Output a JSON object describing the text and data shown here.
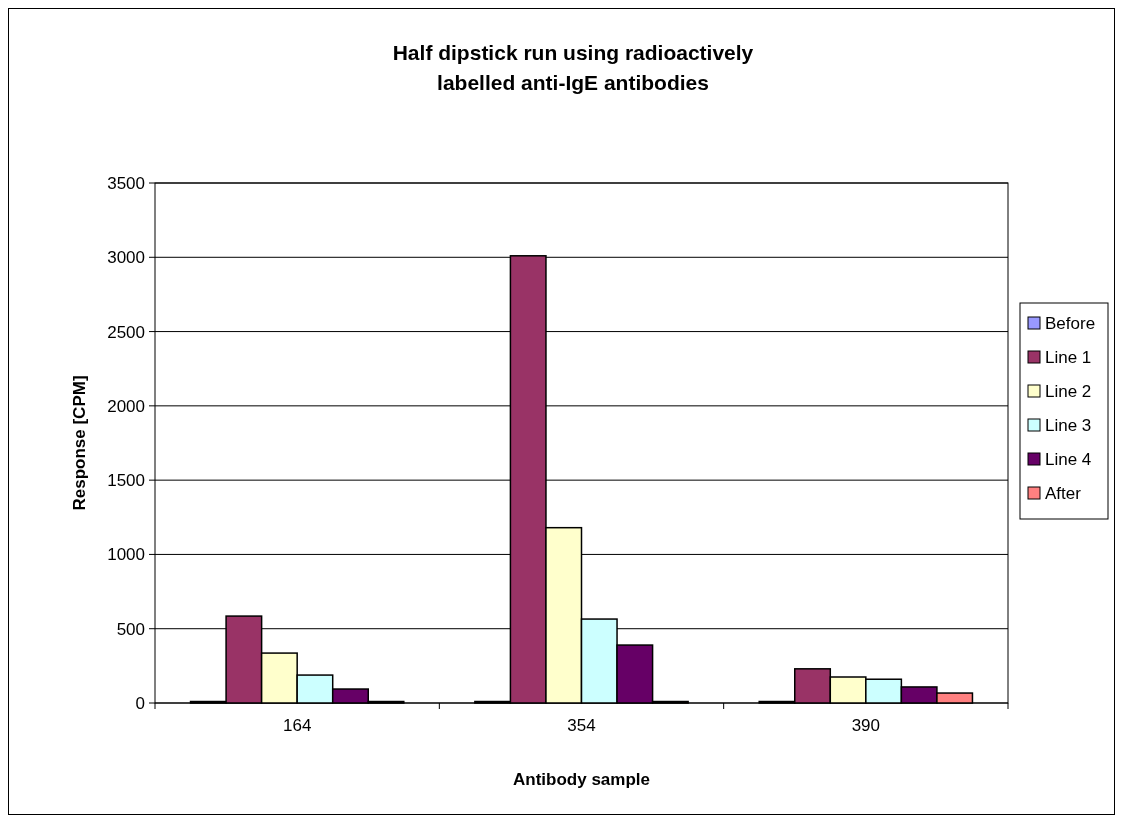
{
  "chart_data": {
    "type": "bar",
    "title": "Half dipstick run using radioactively labelled anti-IgE antibodies",
    "xlabel": "Antibody sample",
    "ylabel": "Response [CPM]",
    "categories": [
      "164",
      "354",
      "390"
    ],
    "series": [
      {
        "name": "Before",
        "color": "#9999ff",
        "values": [
          10,
          10,
          10
        ]
      },
      {
        "name": "Line 1",
        "color": "#993366",
        "values": [
          585,
          3010,
          230
        ]
      },
      {
        "name": "Line 2",
        "color": "#ffffcc",
        "values": [
          336,
          1180,
          175
        ]
      },
      {
        "name": "Line 3",
        "color": "#ccffff",
        "values": [
          188,
          565,
          160
        ]
      },
      {
        "name": "Line 4",
        "color": "#660066",
        "values": [
          94,
          390,
          108
        ]
      },
      {
        "name": "After",
        "color": "#ff8080",
        "values": [
          10,
          10,
          67
        ]
      }
    ],
    "ylim": [
      0,
      3500
    ],
    "yticks": [
      0,
      500,
      1000,
      1500,
      2000,
      2500,
      3000,
      3500
    ],
    "grid": "y",
    "legend": "right"
  }
}
